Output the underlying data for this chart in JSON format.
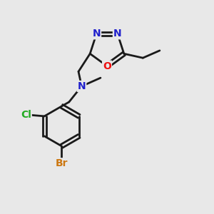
{
  "background_color": "#e8e8e8",
  "bond_color": "#1a1a1a",
  "N_color": "#2020cc",
  "O_color": "#ee1111",
  "Cl_color": "#22aa22",
  "Br_color": "#cc7711",
  "line_width": 2.0,
  "figsize": [
    3.0,
    3.0
  ],
  "dpi": 100,
  "xlim": [
    0,
    10
  ],
  "ylim": [
    0,
    10
  ]
}
